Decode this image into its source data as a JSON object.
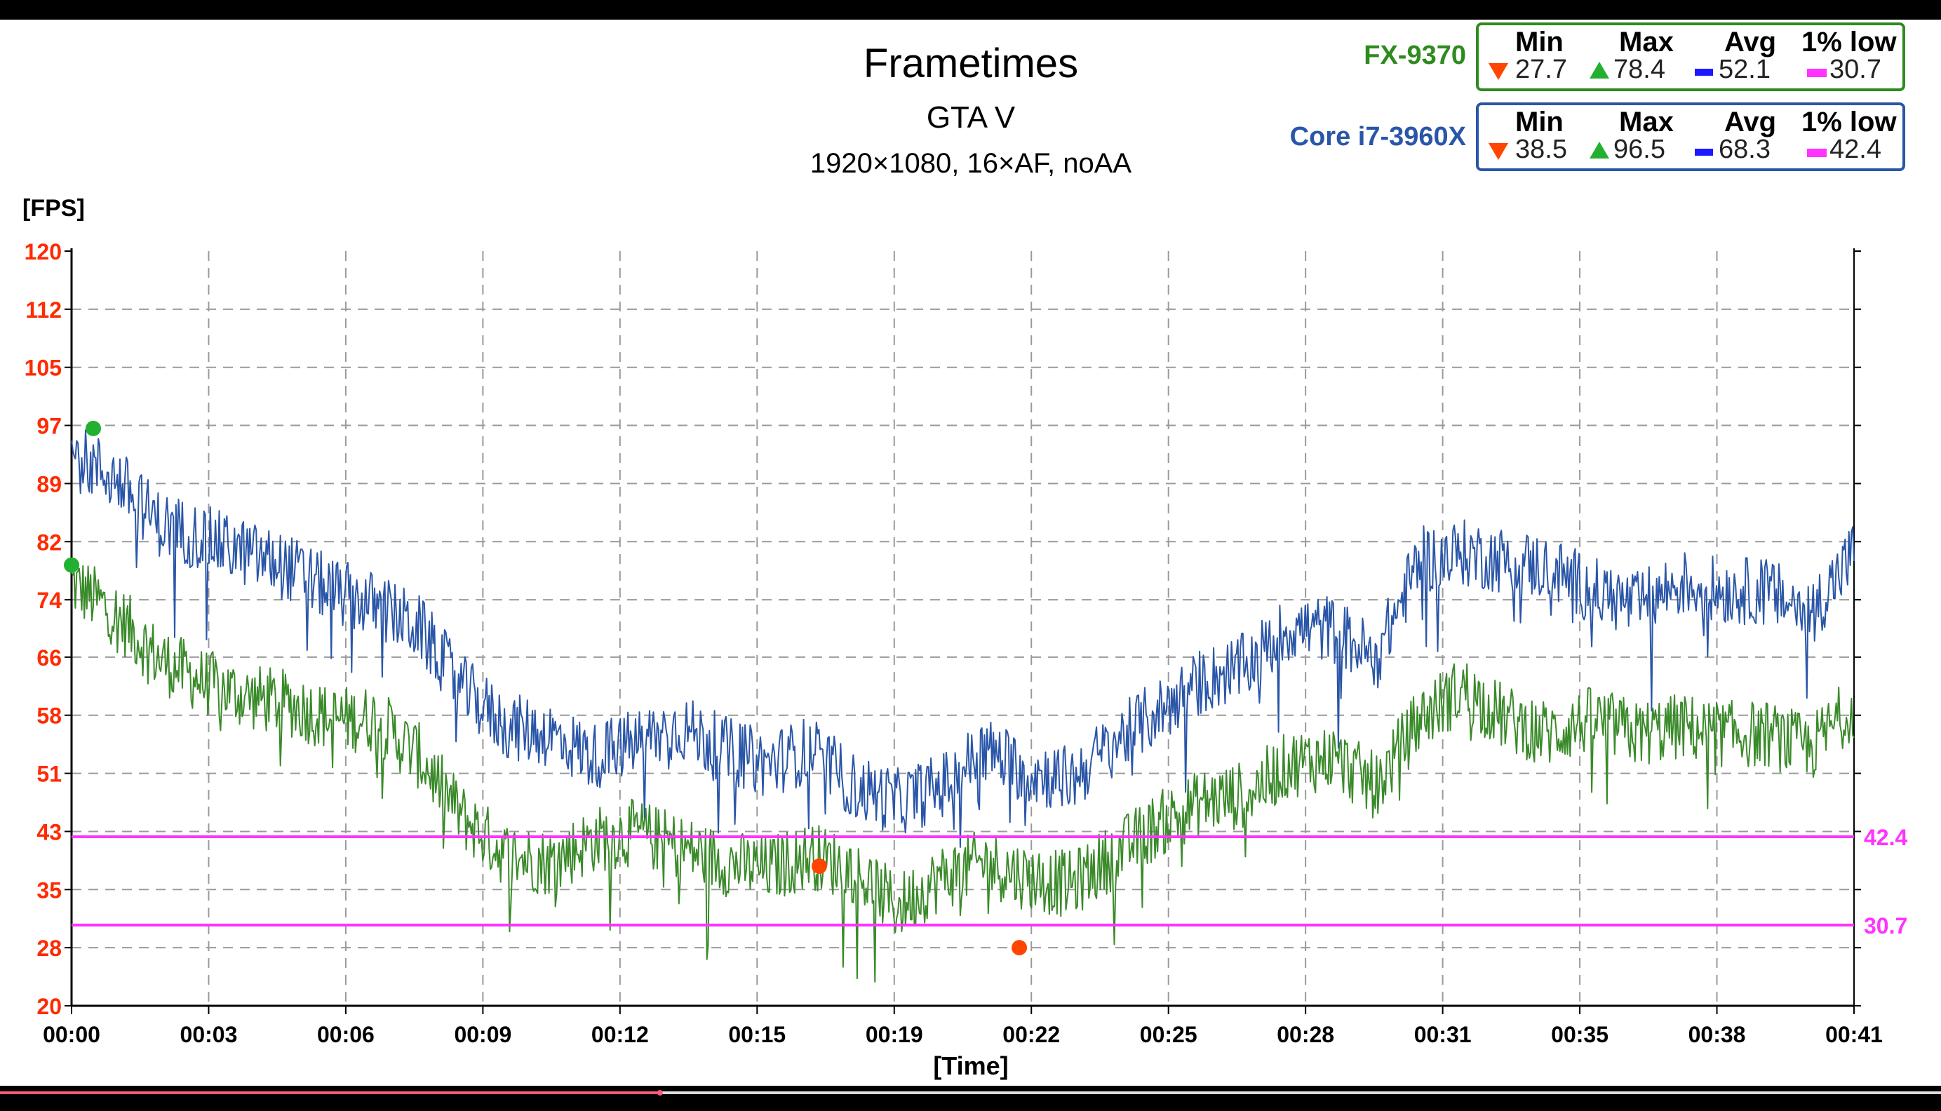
{
  "chart_data": {
    "type": "line",
    "title": "Frametimes",
    "subtitle": "GTA V",
    "subtitle2": "1920×1080, 16×AF, noAA",
    "ylabel": "[FPS]",
    "xlabel": "[Time]",
    "ylim": [
      20,
      120
    ],
    "xlim": [
      0,
      41
    ],
    "y_ticks": [
      "120",
      "112",
      "105",
      "97",
      "89",
      "82",
      "74",
      "66",
      "58",
      "51",
      "43",
      "35",
      "28",
      "20"
    ],
    "y_tick_values": [
      120,
      112.3,
      104.6,
      96.9,
      89.2,
      81.5,
      73.8,
      66.2,
      58.5,
      50.8,
      43.1,
      35.4,
      27.7,
      20
    ],
    "x_ticks": [
      "00:00",
      "00:03",
      "00:06",
      "00:09",
      "00:12",
      "00:15",
      "00:19",
      "00:22",
      "00:25",
      "00:28",
      "00:31",
      "00:35",
      "00:38",
      "00:41"
    ],
    "grid": true,
    "series": [
      {
        "name": "Core i7-3960X",
        "color": "#2a56a8",
        "x": [
          0,
          1,
          2,
          3,
          4,
          5,
          6,
          7,
          8,
          9,
          10,
          11,
          12,
          13,
          14,
          15,
          16,
          17,
          18,
          19,
          20,
          21,
          22,
          23,
          24,
          25,
          26,
          27,
          28,
          29,
          30,
          31,
          32,
          33,
          34,
          35,
          36,
          37,
          38,
          39,
          40,
          41
        ],
        "values": [
          93,
          90,
          84,
          82,
          80,
          78,
          75,
          73,
          70,
          62,
          57,
          56,
          53,
          55,
          57,
          54,
          52,
          54,
          49,
          47,
          49,
          54,
          51,
          50,
          55,
          59,
          63,
          65,
          70,
          70,
          66,
          79,
          80,
          79,
          78,
          75,
          73,
          76,
          75,
          75,
          72,
          80
        ]
      },
      {
        "name": "FX-9370",
        "color": "#3a8a2a",
        "x": [
          0,
          1,
          2,
          3,
          4,
          5,
          6,
          7,
          8,
          9,
          10,
          11,
          12,
          13,
          14,
          15,
          16,
          17,
          18,
          19,
          20,
          21,
          22,
          23,
          24,
          25,
          26,
          27,
          28,
          29,
          30,
          31,
          32,
          33,
          34,
          35,
          36,
          37,
          38,
          39,
          40,
          41
        ],
        "values": [
          76,
          72,
          66,
          63,
          61,
          60,
          58,
          58,
          53,
          45,
          40,
          39,
          42,
          43,
          41,
          39,
          38,
          40,
          38,
          33,
          37,
          39,
          37,
          36,
          40,
          44,
          47,
          48,
          52,
          53,
          49,
          58,
          62,
          58,
          56,
          58,
          56,
          57,
          56,
          56,
          54,
          60
        ]
      }
    ],
    "reference_lines": [
      {
        "value": 42.4,
        "label": "42.4",
        "color": "#ff33ff"
      },
      {
        "value": 30.7,
        "label": "30.7",
        "color": "#ff33ff"
      }
    ],
    "markers": [
      {
        "series": "FX-9370",
        "kind": "max",
        "x": 0,
        "y": 78.4,
        "color": "#22b030"
      },
      {
        "series": "Core i7-3960X",
        "kind": "max",
        "x": 0.5,
        "y": 96.5,
        "color": "#22b030"
      },
      {
        "series": "Core i7-3960X",
        "kind": "min",
        "x": 17.2,
        "y": 38.5,
        "color": "#ff4500"
      },
      {
        "series": "FX-9370",
        "kind": "min",
        "x": 21.8,
        "y": 27.7,
        "color": "#ff4500"
      }
    ]
  },
  "legend": {
    "headers": {
      "min": "Min",
      "max": "Max",
      "avg": "Avg",
      "low": "1% low"
    },
    "entries": [
      {
        "name": "FX-9370",
        "color": "#2e8b1e",
        "min": "27.7",
        "max": "78.4",
        "avg": "52.1",
        "low": "30.7"
      },
      {
        "name": "Core i7-3960X",
        "color": "#2a56a8",
        "min": "38.5",
        "max": "96.5",
        "avg": "68.3",
        "low": "42.4"
      }
    ]
  },
  "colors": {
    "tick_red": "#ff2a00",
    "grid": "#9a9a9a",
    "scrubber_played": "#ff5a7a",
    "scrubber_rest": "#dddddd"
  },
  "scrubber": {
    "progress": 0.34
  }
}
